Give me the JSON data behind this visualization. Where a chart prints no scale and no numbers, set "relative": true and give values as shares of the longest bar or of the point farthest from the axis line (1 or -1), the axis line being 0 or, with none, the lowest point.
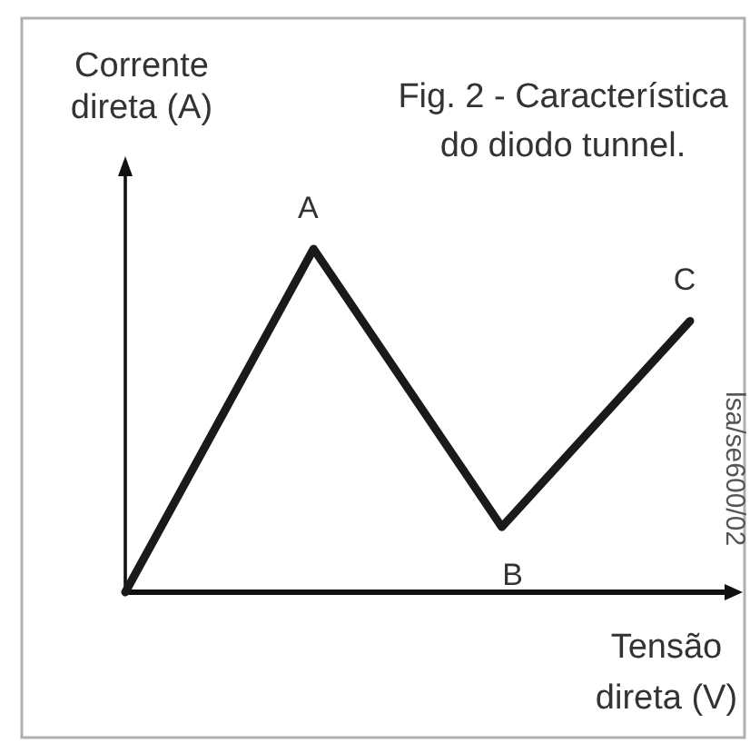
{
  "chart_data": {
    "type": "line",
    "title": "Fig. 2 - Característica\ndo diodo tunnel.",
    "xlabel": "Tensão\ndireta (V)",
    "ylabel": "Corrente\ndireta (A)",
    "categories": [
      null,
      null,
      null,
      null
    ],
    "relative": true,
    "line_style": "solid",
    "series": [
      {
        "color": "#1a1a1a",
        "values": [
          0,
          1,
          0.19,
          0.79
        ]
      }
    ],
    "annotations": [
      {
        "text": "A",
        "y": 1
      },
      {
        "text": "B",
        "y": 0.19
      },
      {
        "text": "C",
        "y": 0.79
      },
      "lsa/se600/02"
    ]
  }
}
